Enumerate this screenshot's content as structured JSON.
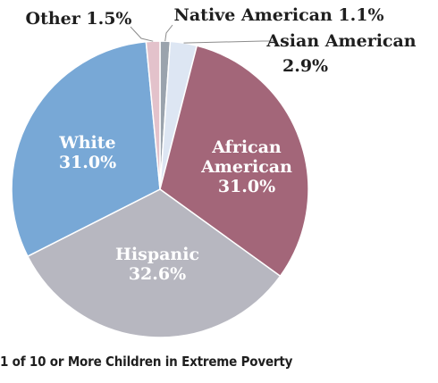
{
  "chart_data": {
    "type": "pie",
    "title": "",
    "caption": "1 of 10 or More Children in Extreme Poverty",
    "slices": [
      {
        "label": "Native American",
        "value": 1.1,
        "value_text": "1.1%",
        "color": "#9aa3ad"
      },
      {
        "label": "Asian American",
        "value": 2.9,
        "value_text": "2.9%",
        "color": "#dde6f3"
      },
      {
        "label": "African American",
        "value": 31.0,
        "value_text": "31.0%",
        "color": "#a36679"
      },
      {
        "label": "Hispanic",
        "value": 32.6,
        "value_text": "32.6%",
        "color": "#b7b7c0"
      },
      {
        "label": "White",
        "value": 31.0,
        "value_text": "31.0%",
        "color": "#78a8d6"
      },
      {
        "label": "Other",
        "value": 1.5,
        "value_text": "1.5%",
        "color": "#e3c2cb"
      }
    ]
  }
}
